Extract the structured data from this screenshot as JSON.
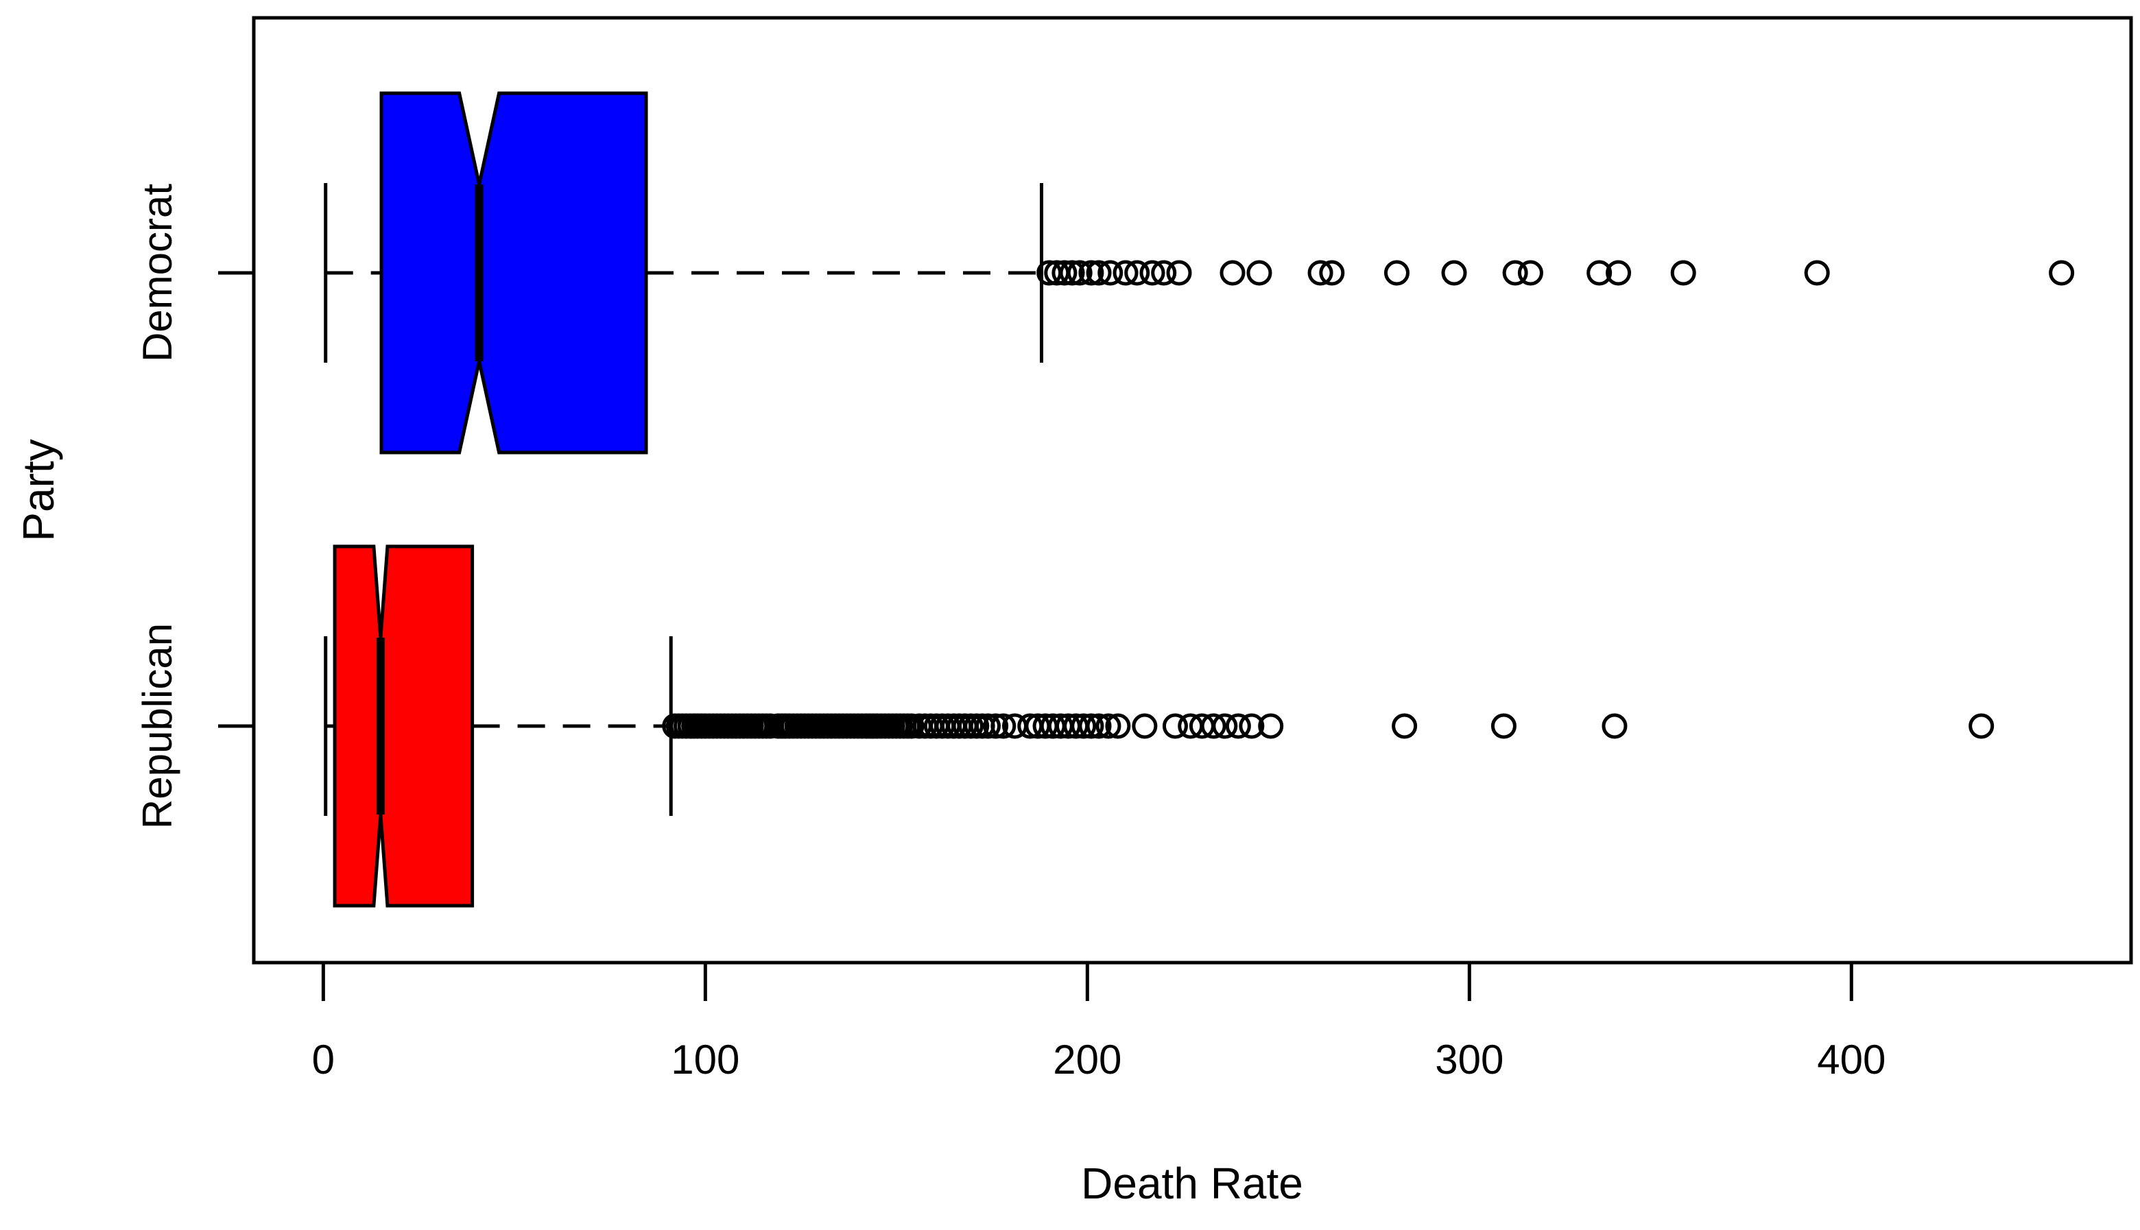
{
  "figure": {
    "background": "#ffffff",
    "foreground": "#000000"
  },
  "chart_data": {
    "type": "boxplot",
    "orientation": "horizontal",
    "notched": true,
    "grid": false,
    "title": "",
    "xlabel": "Death Rate",
    "ylabel": "Party",
    "x_ticks": [
      0,
      100,
      200,
      300,
      400
    ],
    "x_tick_labels": [
      "0",
      "100",
      "200",
      "300",
      "400"
    ],
    "xlim": [
      -18.2,
      473.2
    ],
    "legend": "none",
    "point_style": "open-circle",
    "axis_color": "#000000",
    "groups": [
      {
        "label": "Democrat",
        "fill_color": "#0000ff",
        "stats": {
          "whisker_low": 0.6,
          "q1": 15.2,
          "median": 40.8,
          "q3": 84.5,
          "whisker_high": 188
        },
        "notch_halfwidth": 5.2,
        "outliers": [
          190,
          192,
          194,
          196,
          198,
          201,
          203,
          206,
          210,
          213,
          217,
          220,
          224,
          238,
          245,
          261,
          264,
          281,
          296,
          312,
          316,
          334,
          339,
          356,
          391,
          455
        ]
      },
      {
        "label": "Republican",
        "fill_color": "#ff0000",
        "stats": {
          "whisker_low": 0.6,
          "q1": 3,
          "median": 15,
          "q3": 39,
          "whisker_high": 91
        },
        "notch_halfwidth": 1.8,
        "outliers": [
          92,
          93,
          94,
          95,
          96,
          97,
          98,
          99,
          100,
          101,
          102,
          103,
          104,
          105,
          106,
          107,
          108,
          109,
          110,
          111,
          112,
          113,
          114,
          115,
          116,
          117,
          119,
          120,
          121,
          122,
          123,
          124,
          125,
          126,
          127,
          128,
          129,
          130,
          131,
          132,
          133,
          134,
          135,
          136,
          137,
          138,
          139,
          140,
          141,
          142,
          143,
          144,
          145,
          146,
          147,
          148,
          149,
          150,
          151,
          152,
          153,
          154,
          156,
          157.5,
          159,
          160.5,
          162,
          163.5,
          165,
          166.5,
          168,
          169.5,
          171,
          172.5,
          174,
          176,
          178,
          181,
          185,
          187,
          189,
          191,
          193,
          195,
          197,
          199,
          201,
          203,
          205.5,
          208,
          215,
          223,
          227,
          230,
          233,
          236,
          239.5,
          243,
          248,
          283,
          309,
          338,
          434
        ]
      }
    ]
  }
}
